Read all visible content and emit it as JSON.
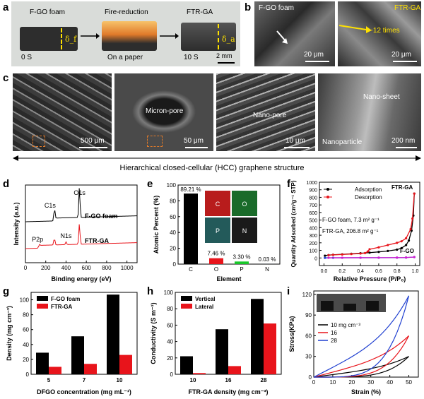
{
  "panel_labels": {
    "a": "a",
    "b": "b",
    "c": "c",
    "d": "d",
    "e": "e",
    "f": "f",
    "g": "g",
    "h": "h",
    "i": "i"
  },
  "panel_a": {
    "titles": [
      "F-GO foam",
      "Fire-reduction",
      "FTR-GA"
    ],
    "times": [
      "0 S",
      "On a paper",
      "10 S"
    ],
    "delta_f": "δ_f",
    "delta_a": "δ_a",
    "scale": "2 mm",
    "colors": {
      "bg": "#d9dcd9",
      "foam": "#2d2d2d",
      "fire": "#e07a2a"
    }
  },
  "panel_b": {
    "left_label": "F-GO foam",
    "right_label": "FTR-GA",
    "annotation": "~12 times",
    "scale_left": "20 μm",
    "scale_right": "20 μm"
  },
  "panel_c": {
    "labels": [
      "Micron-pore",
      "Nano-pore",
      "Nano-sheet",
      "Nanoparticle"
    ],
    "scales": [
      "500 μm",
      "50 μm",
      "10 μm",
      "200 nm"
    ],
    "caption": "Hierarchical closed-cellular (HCC) graphene structure"
  },
  "chart_data": [
    {
      "id": "d",
      "type": "line",
      "xlabel": "Binding energy (eV)",
      "ylabel": "Intensity (a.u.)",
      "xlim": [
        0,
        1100
      ],
      "xticks": [
        0,
        200,
        400,
        600,
        800,
        1000
      ],
      "series": [
        {
          "name": "F-GO foam",
          "color": "#000000",
          "peaks": [
            {
              "label": "C1s",
              "x": 285
            },
            {
              "label": "O1s",
              "x": 532
            }
          ]
        },
        {
          "name": "FTR-GA",
          "color": "#e8141b",
          "peaks": [
            {
              "label": "P2p",
              "x": 133
            },
            {
              "label": "N1s",
              "x": 400
            }
          ]
        }
      ]
    },
    {
      "id": "e",
      "type": "bar",
      "xlabel": "Element",
      "ylabel": "Atomic Percent (%)",
      "ylim": [
        0,
        100
      ],
      "yticks": [
        0,
        20,
        40,
        60,
        80,
        100
      ],
      "categories": [
        "C",
        "O",
        "P",
        "N"
      ],
      "values": [
        89.21,
        7.46,
        3.3,
        0.03
      ],
      "value_labels": [
        "89.21 %",
        "7.46 %",
        "3.30 %",
        "0.03 %"
      ],
      "colors": [
        "#000000",
        "#e8141b",
        "#19c82a",
        "#1f3fd0"
      ],
      "map_labels": [
        "C",
        "O",
        "P",
        "N"
      ]
    },
    {
      "id": "f",
      "type": "line",
      "xlabel": "Relative Pressure (P/P₀)",
      "ylabel": "Quantity Adsorbed (cm³g⁻¹ STP)",
      "xlim": [
        -0.05,
        1.05
      ],
      "ylim": [
        -100,
        1000
      ],
      "xticks": [
        0.0,
        0.2,
        0.4,
        0.6,
        0.8,
        1.0
      ],
      "yticks": [
        0,
        100,
        200,
        300,
        400,
        500,
        600,
        700,
        800,
        900,
        1000
      ],
      "legend": [
        "Adsorption",
        "Desorption"
      ],
      "annotations": [
        "F-GO foam, 7.3 m² g⁻¹",
        "FTR-GA, 206.8 m² g⁻¹",
        "FTR-GA",
        "F-GO"
      ],
      "series": [
        {
          "name": "FTR-GA adsorption",
          "color": "#000000",
          "x": [
            0.01,
            0.05,
            0.1,
            0.2,
            0.3,
            0.4,
            0.5,
            0.6,
            0.7,
            0.8,
            0.85,
            0.9,
            0.93,
            0.96,
            0.98,
            0.99
          ],
          "y": [
            30,
            38,
            42,
            48,
            55,
            62,
            70,
            80,
            92,
            110,
            130,
            170,
            230,
            360,
            560,
            850
          ]
        },
        {
          "name": "FTR-GA desorption",
          "color": "#e8141b",
          "x": [
            0.99,
            0.97,
            0.95,
            0.9,
            0.85,
            0.8,
            0.7,
            0.6,
            0.5,
            0.48,
            0.45,
            0.4,
            0.3,
            0.2,
            0.1,
            0.05
          ],
          "y": [
            850,
            520,
            380,
            260,
            220,
            200,
            170,
            140,
            115,
            85,
            64,
            58,
            52,
            46,
            41,
            36
          ]
        },
        {
          "name": "F-GO adsorption",
          "color": "#1f3fd0",
          "x": [
            0.01,
            0.1,
            0.2,
            0.4,
            0.6,
            0.8,
            0.9,
            0.99
          ],
          "y": [
            1,
            2,
            2,
            3,
            3,
            4,
            5,
            12
          ]
        },
        {
          "name": "F-GO desorption",
          "color": "#d11fd1",
          "x": [
            0.99,
            0.9,
            0.8,
            0.6,
            0.4,
            0.2,
            0.05
          ],
          "y": [
            12,
            6,
            5,
            4,
            3,
            3,
            2
          ]
        }
      ]
    },
    {
      "id": "g",
      "type": "bar",
      "xlabel": "DFGO concentration (mg mL⁻¹)",
      "ylabel": "Density (mg cm⁻³)",
      "ylim": [
        0,
        110
      ],
      "yticks": [
        0,
        20,
        40,
        60,
        80,
        100
      ],
      "categories": [
        "5",
        "7",
        "10"
      ],
      "series": [
        {
          "name": "F-GO foam",
          "color": "#000000",
          "values": [
            29,
            51,
            107
          ]
        },
        {
          "name": "FTR-GA",
          "color": "#e8141b",
          "values": [
            10,
            14,
            26
          ]
        }
      ]
    },
    {
      "id": "h",
      "type": "bar",
      "xlabel": "FTR-GA density (mg cm⁻³)",
      "ylabel": "Conductivity (S m⁻¹)",
      "ylim": [
        0,
        100
      ],
      "yticks": [
        0,
        20,
        40,
        60,
        80,
        100
      ],
      "categories": [
        "10",
        "16",
        "28"
      ],
      "series": [
        {
          "name": "Vertical",
          "color": "#000000",
          "values": [
            22,
            55,
            92
          ]
        },
        {
          "name": "Lateral",
          "color": "#e8141b",
          "values": [
            1.5,
            10,
            62
          ]
        }
      ]
    },
    {
      "id": "i",
      "type": "line",
      "xlabel": "Strain (%)",
      "ylabel": "Stress(KPa)",
      "xlim": [
        0,
        55
      ],
      "ylim": [
        0,
        125
      ],
      "xticks": [
        0,
        10,
        20,
        30,
        40,
        50
      ],
      "yticks": [
        0,
        30,
        60,
        90,
        120
      ],
      "series": [
        {
          "name": "10 mg cm⁻³",
          "color": "#000000",
          "max_strain": 50,
          "max_stress": 30
        },
        {
          "name": "16",
          "color": "#e8141b",
          "max_strain": 50,
          "max_stress": 60
        },
        {
          "name": "28",
          "color": "#1f3fd0",
          "max_strain": 50,
          "max_stress": 118
        }
      ]
    }
  ]
}
